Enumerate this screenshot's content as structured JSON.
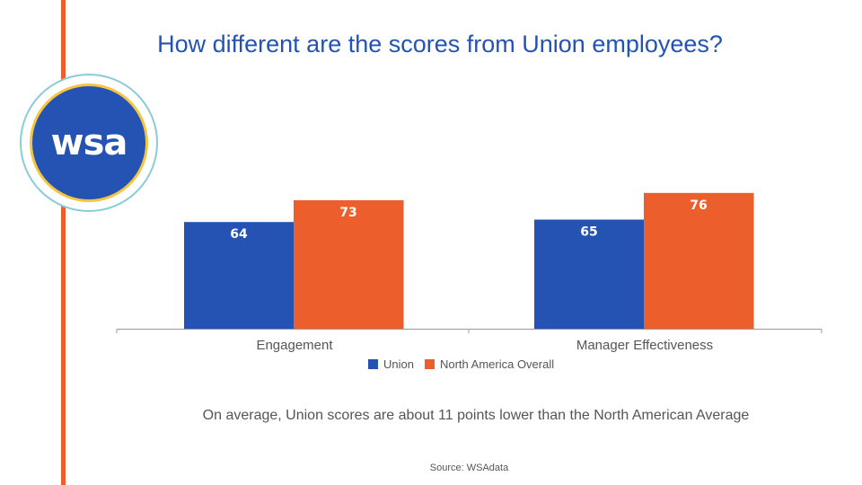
{
  "title": "How different are the scores from Union employees?",
  "logo_text": "wsa",
  "note": "On average, Union scores are about 11 points lower than the North American Average",
  "source": "Source:  WSAdata",
  "colors": {
    "union": "#2453b3",
    "north_america": "#ec5f2c",
    "accent_line": "#ec5f2c"
  },
  "chart_data": {
    "type": "bar",
    "categories": [
      "Engagement",
      "Manager Effectiveness"
    ],
    "series": [
      {
        "name": "Union",
        "values": [
          64,
          65
        ],
        "color": "#2453b3"
      },
      {
        "name": "North America Overall",
        "values": [
          73,
          76
        ],
        "color": "#ec5f2c"
      }
    ],
    "ylim": [
      20,
      80
    ],
    "grid": false,
    "legend": "bottom",
    "data_labels": true
  }
}
